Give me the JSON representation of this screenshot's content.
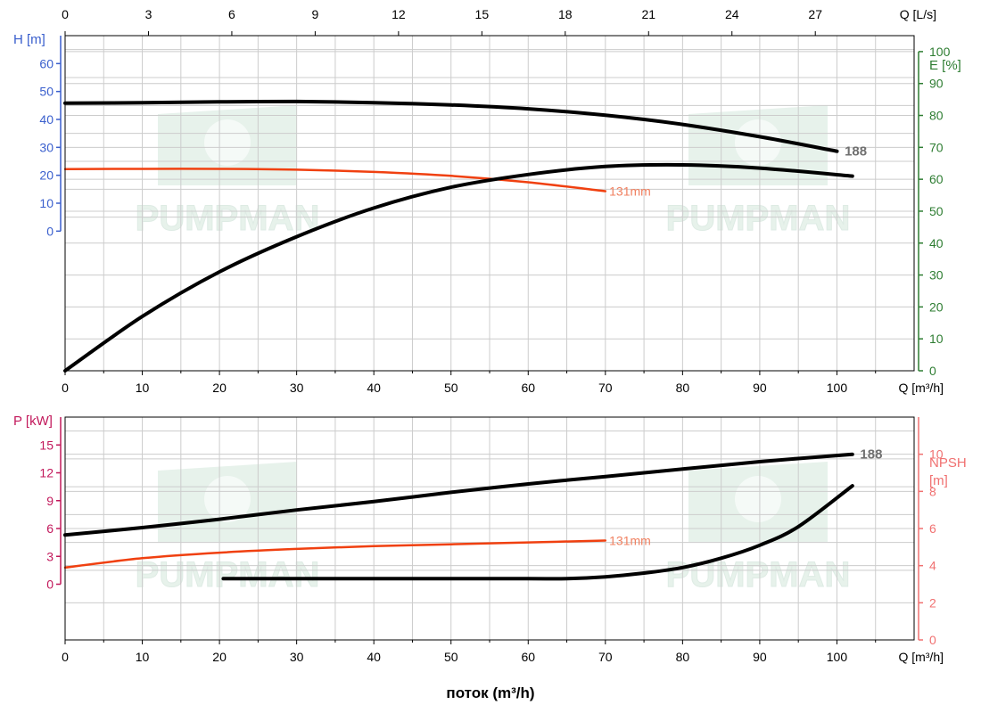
{
  "watermark": {
    "text": "PUMPMAN"
  },
  "colors": {
    "blue_axis": "#3a5fcd",
    "green_axis": "#2e7d32",
    "pink_axis": "#c2185b",
    "salmon_axis": "#f07070",
    "curve_black": "#000000",
    "curve_orange": "#f04010",
    "label_gray": "#707070",
    "label_orange": "#f08060",
    "grid": "#cccccc",
    "watermark": "#d4e8dc"
  },
  "xlabel_bottom": "поток (m³/h)",
  "chart_data": [
    {
      "id": "top",
      "type": "line",
      "x_axis": {
        "label": "Q [m³/h]",
        "range": [
          0,
          110
        ],
        "ticks": [
          0,
          10,
          20,
          30,
          40,
          50,
          60,
          70,
          80,
          90,
          100
        ]
      },
      "x_axis_top": {
        "label": "Q [L/s]",
        "range": [
          0,
          30.556
        ],
        "ticks": [
          0,
          3,
          6,
          9,
          12,
          15,
          18,
          21,
          24,
          27
        ]
      },
      "y_axis_left": {
        "label": "H [m]",
        "range": [
          -50,
          70
        ],
        "ticks": [
          0,
          10,
          20,
          30,
          40,
          50,
          60
        ]
      },
      "y_axis_right": {
        "label": "E [%]",
        "range": [
          0,
          105
        ],
        "ticks": [
          0,
          10,
          20,
          30,
          40,
          50,
          60,
          70,
          80,
          90,
          100
        ]
      },
      "grid": true,
      "series": [
        {
          "name": "188",
          "axis": "left",
          "color": "#000000",
          "x": [
            0,
            10,
            20,
            30,
            40,
            50,
            60,
            70,
            80,
            90,
            100
          ],
          "y": [
            45.8,
            46.0,
            46.3,
            46.4,
            46.0,
            45.2,
            43.8,
            41.5,
            38.2,
            33.8,
            28.6
          ]
        },
        {
          "name": "131mm",
          "axis": "left",
          "color": "#f04010",
          "x": [
            0,
            10,
            20,
            30,
            40,
            50,
            60,
            70
          ],
          "y": [
            22.2,
            22.3,
            22.3,
            22.0,
            21.2,
            19.8,
            17.5,
            14.3
          ]
        },
        {
          "name": "",
          "axis": "right",
          "color": "#000000",
          "x": [
            0,
            10,
            20,
            30,
            40,
            50,
            60,
            70,
            80,
            90,
            102
          ],
          "y": [
            0,
            17,
            31,
            42,
            51,
            57.5,
            61.5,
            64,
            64.5,
            63.5,
            61
          ]
        }
      ],
      "annotations": [
        {
          "text": "188",
          "x": 101,
          "y": 28.6,
          "axis": "left",
          "color": "#707070",
          "bold": true
        },
        {
          "text": "131mm",
          "x": 70.5,
          "y": 14.3,
          "axis": "left",
          "color": "#f08060",
          "bold": false
        }
      ]
    },
    {
      "id": "bottom",
      "type": "line",
      "x_axis": {
        "label": "Q [m³/h]",
        "range": [
          0,
          110
        ],
        "ticks": [
          0,
          10,
          20,
          30,
          40,
          50,
          60,
          70,
          80,
          90,
          100
        ]
      },
      "y_axis_left": {
        "label": "P [kW]",
        "range": [
          -6,
          18
        ],
        "ticks": [
          0,
          3,
          6,
          9,
          12,
          15
        ]
      },
      "y_axis_right": {
        "label_lines": [
          "NPSH",
          "[m]"
        ],
        "range": [
          0,
          12
        ],
        "ticks": [
          0,
          2,
          4,
          6,
          8,
          10
        ]
      },
      "grid": true,
      "series": [
        {
          "name": "188",
          "axis": "left",
          "color": "#000000",
          "x": [
            0,
            10,
            20,
            30,
            40,
            50,
            60,
            70,
            80,
            90,
            102
          ],
          "y": [
            5.3,
            6.1,
            7.0,
            8.0,
            8.9,
            9.9,
            10.8,
            11.6,
            12.4,
            13.2,
            14.0
          ]
        },
        {
          "name": "131mm",
          "axis": "left",
          "color": "#f04010",
          "x": [
            0,
            10,
            20,
            30,
            40,
            50,
            60,
            70
          ],
          "y": [
            1.8,
            2.8,
            3.4,
            3.8,
            4.1,
            4.3,
            4.5,
            4.7
          ]
        },
        {
          "name": "",
          "axis": "right",
          "color": "#000000",
          "x": [
            20.5,
            30,
            40,
            50,
            60,
            65,
            70,
            75,
            80,
            85,
            90,
            95,
            102
          ],
          "y": [
            3.3,
            3.3,
            3.3,
            3.3,
            3.3,
            3.3,
            3.4,
            3.6,
            3.9,
            4.4,
            5.1,
            6.1,
            8.3
          ]
        }
      ],
      "annotations": [
        {
          "text": "188",
          "x": 103,
          "y": 14.0,
          "axis": "left",
          "color": "#707070",
          "bold": true
        },
        {
          "text": "131mm",
          "x": 70.5,
          "y": 4.7,
          "axis": "left",
          "color": "#f08060",
          "bold": false
        }
      ]
    }
  ]
}
